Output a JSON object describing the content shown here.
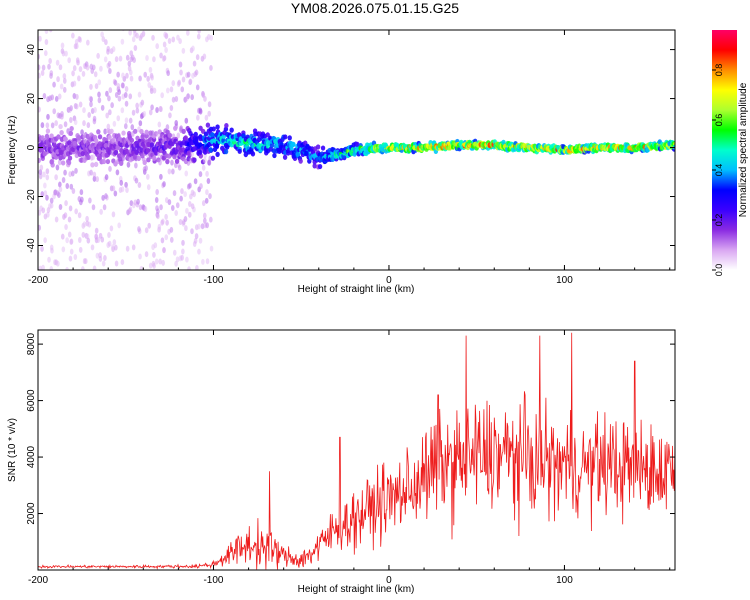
{
  "title": "YM08.2026.075.01.15.G25",
  "chart_data": [
    {
      "type": "heatmap",
      "name": "spectrogram",
      "xlabel": "Height of straight line (km)",
      "ylabel": "Frequency (Hz)",
      "xlim": [
        -200,
        163
      ],
      "ylim": [
        -50,
        48
      ],
      "xticks": [
        -200,
        -100,
        0,
        100
      ],
      "yticks": [
        -40,
        -20,
        0,
        20,
        40
      ],
      "colorbar": {
        "label": "Normalized spectral amplitude",
        "range": [
          0,
          0.96
        ],
        "ticks": [
          0.0,
          0.2,
          0.4,
          0.6,
          0.8
        ],
        "tick_labels": [
          "0.0",
          "0.2",
          "0.4",
          "0.6",
          "0.8"
        ],
        "colormap": [
          "#ffffff",
          "#d9a6f2",
          "#8a2be2",
          "#3a00ff",
          "#0000ff",
          "#00bfff",
          "#00ffcc",
          "#00ff00",
          "#adff2f",
          "#ffff00",
          "#ff8c00",
          "#ff0000",
          "#ff0066"
        ]
      },
      "description_points": {
        "height_km": [
          -200,
          -150,
          -120,
          -100,
          -80,
          -60,
          -40,
          -30,
          -20,
          0,
          20,
          40,
          60,
          80,
          100,
          120,
          140,
          163
        ],
        "centre_frequency_hz": [
          0,
          0,
          0,
          3,
          2,
          1,
          -4,
          -3,
          -1,
          0,
          0,
          1,
          1,
          0,
          -1,
          0,
          0,
          1
        ],
        "peak_amplitude": [
          0.2,
          0.2,
          0.25,
          0.5,
          0.6,
          0.5,
          0.45,
          0.6,
          0.7,
          0.85,
          0.9,
          0.95,
          0.9,
          0.85,
          0.9,
          0.85,
          0.9,
          0.8
        ],
        "band_halfwidth_hz": [
          45,
          45,
          45,
          8,
          6,
          6,
          5,
          3,
          3,
          2,
          2,
          2,
          2,
          2,
          2,
          2,
          2,
          2
        ]
      }
    },
    {
      "type": "line",
      "name": "snr",
      "xlabel": "Height of straight line (km)",
      "ylabel": "SNR (10 * v/v)",
      "xlim": [
        -200,
        163
      ],
      "ylim": [
        0,
        8500
      ],
      "xticks": [
        -200,
        -100,
        0,
        100
      ],
      "yticks": [
        2000,
        4000,
        6000,
        8000
      ],
      "color": "#ee1c1c",
      "envelope": {
        "height_km": [
          -200,
          -150,
          -110,
          -100,
          -90,
          -80,
          -70,
          -60,
          -50,
          -40,
          -30,
          -20,
          -10,
          0,
          10,
          20,
          30,
          40,
          50,
          60,
          70,
          80,
          90,
          100,
          110,
          120,
          130,
          140,
          150,
          163
        ],
        "mean_snr": [
          120,
          120,
          130,
          200,
          600,
          900,
          800,
          500,
          350,
          800,
          1500,
          1800,
          2200,
          2500,
          2800,
          3300,
          3700,
          3800,
          4000,
          4100,
          4000,
          3900,
          3800,
          3700,
          3600,
          3800,
          3700,
          3600,
          3500,
          3600
        ],
        "spread_snr": [
          60,
          60,
          70,
          150,
          500,
          900,
          1000,
          500,
          400,
          800,
          1000,
          1200,
          1500,
          1600,
          1800,
          2000,
          2300,
          2400,
          2500,
          2500,
          2400,
          2400,
          2300,
          2200,
          2100,
          2200,
          2200,
          2100,
          2000,
          2000
        ]
      },
      "peaks": [
        {
          "height_km": -68,
          "snr": 3500
        },
        {
          "height_km": -28,
          "snr": 4700
        },
        {
          "height_km": 28,
          "snr": 6200
        },
        {
          "height_km": 44,
          "snr": 8300
        },
        {
          "height_km": 86,
          "snr": 8300
        },
        {
          "height_km": 104,
          "snr": 8400
        },
        {
          "height_km": 140,
          "snr": 7400
        }
      ]
    }
  ]
}
